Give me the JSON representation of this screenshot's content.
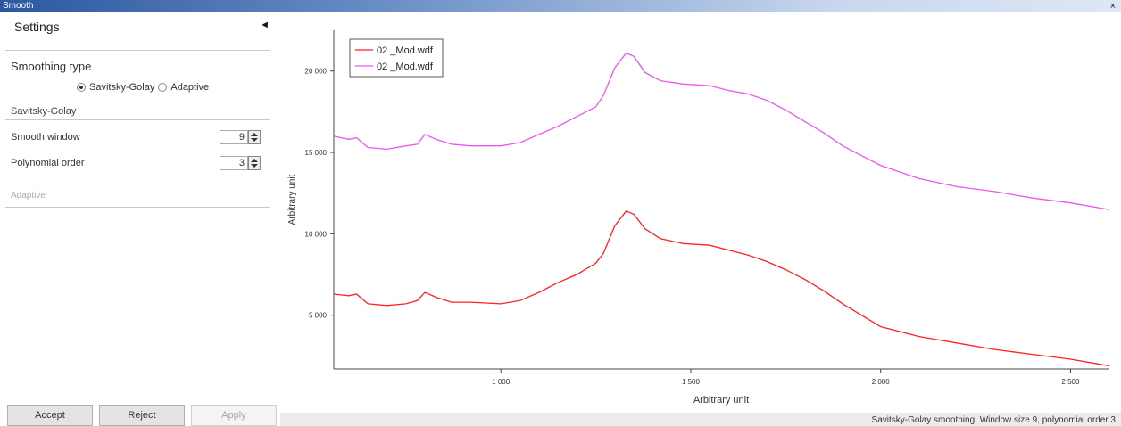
{
  "window": {
    "title": "Smooth",
    "close_label": "×"
  },
  "settings": {
    "header": "Settings",
    "collapse_glyph": "◄",
    "smoothing_type_label": "Smoothing type",
    "options": [
      {
        "label": "Savitsky-Golay",
        "selected": true
      },
      {
        "label": "Adaptive",
        "selected": false
      }
    ],
    "savitsky_section": "Savitsky-Golay",
    "params": [
      {
        "label": "Smooth window",
        "value": "9"
      },
      {
        "label": "Polynomial order",
        "value": "3"
      }
    ],
    "adaptive_section": "Adaptive"
  },
  "buttons": {
    "accept": "Accept",
    "reject": "Reject",
    "apply": "Apply"
  },
  "status_text": "Savitsky-Golay smoothing: Window size 9, polynomial order 3",
  "chart_data": {
    "type": "line",
    "title": "",
    "xlabel": "Arbitrary unit",
    "ylabel": "Arbitrary unit",
    "xlim": [
      560,
      2600
    ],
    "ylim": [
      1700,
      22500
    ],
    "xticks": [
      1000,
      1500,
      2000,
      2500
    ],
    "xtick_labels": [
      "1 000",
      "1 500",
      "2 000",
      "2 500"
    ],
    "yticks": [
      5000,
      10000,
      15000,
      20000
    ],
    "ytick_labels": [
      "5 000",
      "10 000",
      "15 000",
      "20 000"
    ],
    "grid": false,
    "legend_position": "top-left",
    "series": [
      {
        "name": "02 _Mod.wdf",
        "color": "#ff2020",
        "x": [
          560,
          600,
          620,
          650,
          700,
          750,
          780,
          800,
          830,
          870,
          920,
          1000,
          1050,
          1100,
          1150,
          1200,
          1250,
          1270,
          1300,
          1330,
          1350,
          1380,
          1420,
          1480,
          1550,
          1600,
          1650,
          1700,
          1750,
          1800,
          1850,
          1900,
          1950,
          2000,
          2100,
          2200,
          2300,
          2400,
          2500,
          2600
        ],
        "y": [
          6300,
          6200,
          6300,
          5700,
          5600,
          5700,
          5900,
          6400,
          6100,
          5800,
          5800,
          5700,
          5900,
          6400,
          7000,
          7500,
          8200,
          8800,
          10500,
          11400,
          11200,
          10300,
          9700,
          9400,
          9300,
          9000,
          8700,
          8300,
          7800,
          7200,
          6500,
          5700,
          5000,
          4300,
          3700,
          3300,
          2900,
          2600,
          2300,
          1900
        ]
      },
      {
        "name": "02 _Mod.wdf",
        "color": "#ee55ee",
        "x": [
          560,
          600,
          620,
          650,
          700,
          750,
          780,
          800,
          830,
          870,
          920,
          1000,
          1050,
          1100,
          1150,
          1200,
          1250,
          1270,
          1300,
          1330,
          1350,
          1380,
          1420,
          1480,
          1550,
          1600,
          1650,
          1700,
          1750,
          1800,
          1850,
          1900,
          1950,
          2000,
          2100,
          2200,
          2300,
          2400,
          2500,
          2600
        ],
        "y": [
          16000,
          15800,
          15900,
          15300,
          15200,
          15400,
          15500,
          16100,
          15800,
          15500,
          15400,
          15400,
          15600,
          16100,
          16600,
          17200,
          17800,
          18500,
          20200,
          21100,
          20900,
          19900,
          19400,
          19200,
          19100,
          18800,
          18600,
          18200,
          17600,
          16900,
          16200,
          15400,
          14800,
          14200,
          13400,
          12900,
          12600,
          12200,
          11900,
          11500
        ]
      }
    ]
  }
}
